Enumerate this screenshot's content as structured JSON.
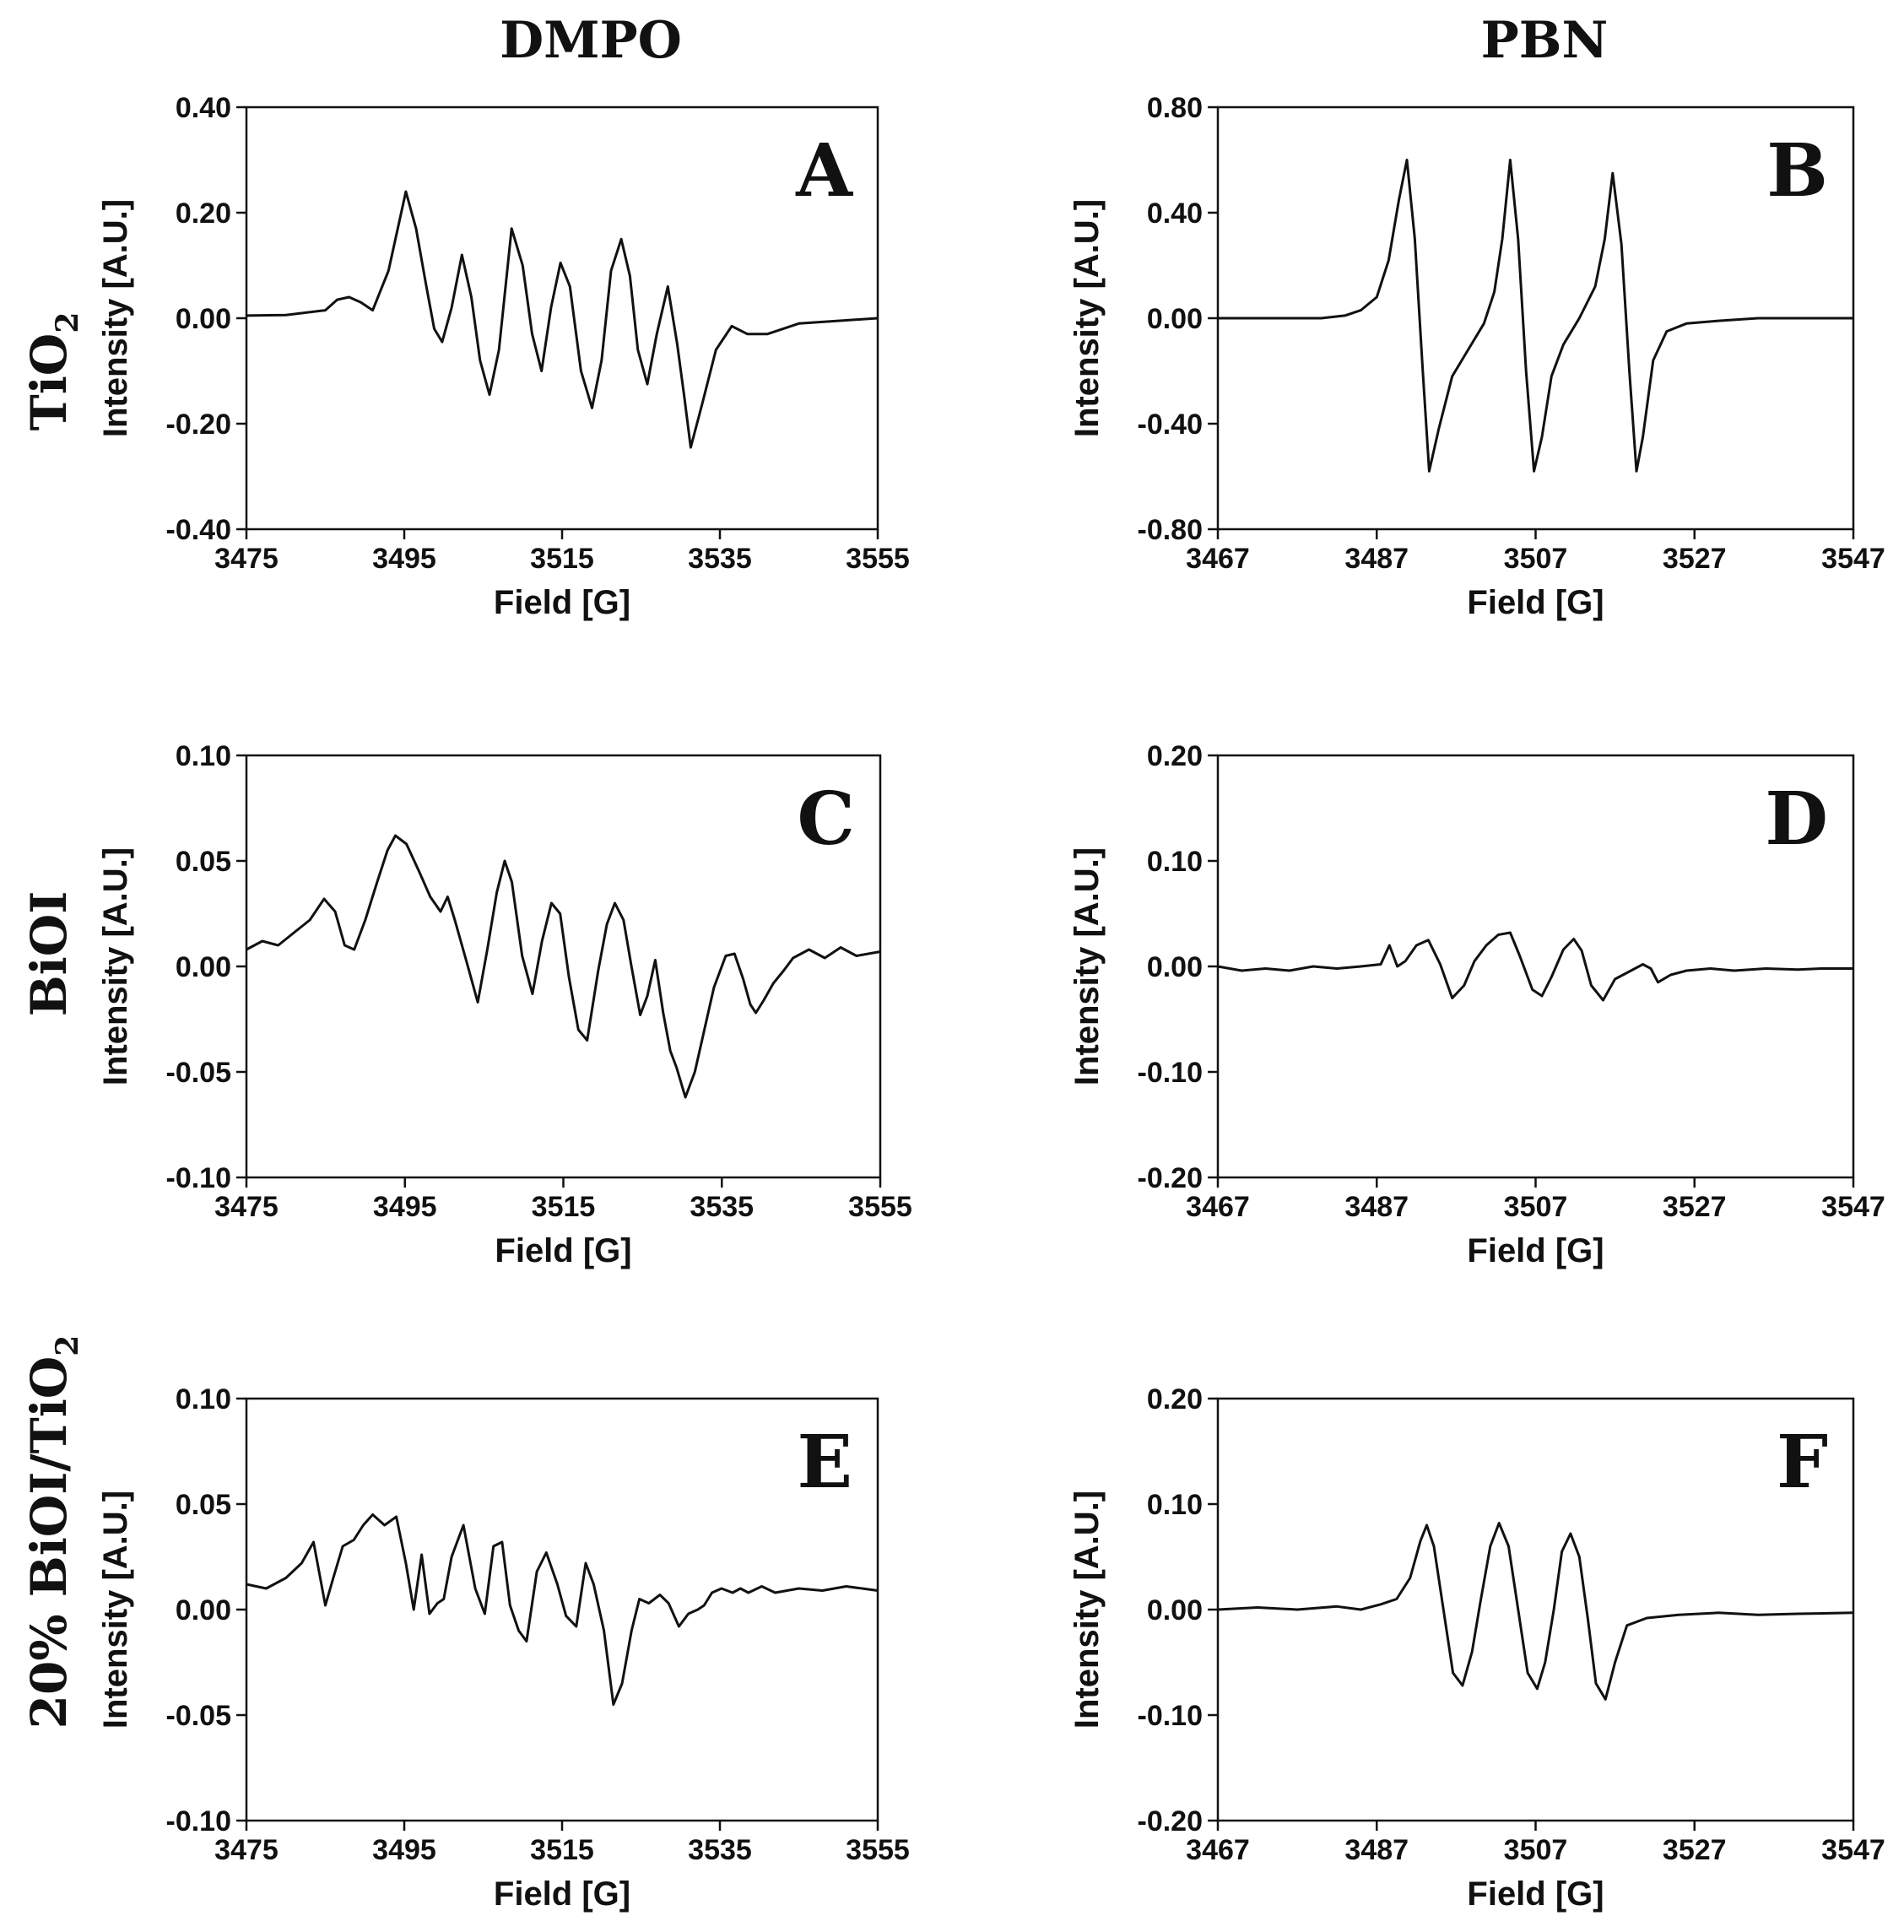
{
  "column_headers": [
    "DMPO",
    "PBN"
  ],
  "row_headers": [
    {
      "main": "TiO",
      "sub": "2"
    },
    {
      "main": "BiOI",
      "sub": ""
    },
    {
      "main": "20% BiOI/TiO",
      "sub": "2"
    }
  ],
  "chart_data": [
    {
      "id": "A",
      "type": "line",
      "panel_label": "A",
      "xlabel": "Field [G]",
      "ylabel": "Intensity [A.U.]",
      "xlim": [
        3475,
        3555
      ],
      "ylim": [
        -0.4,
        0.4
      ],
      "xticks": [
        3475,
        3495,
        3515,
        3535,
        3555
      ],
      "yticks": [
        0.4,
        0.2,
        0.0,
        -0.2,
        -0.4
      ],
      "xtick_labels": [
        "3475",
        "3495",
        "3515",
        "3535",
        "3555"
      ],
      "ytick_labels": [
        "0.40",
        "0.20",
        "0.00",
        "-0.20",
        "-0.40"
      ],
      "series": [
        {
          "name": "TiO2 DMPO",
          "x": [
            3475,
            3480,
            3485,
            3486.5,
            3488,
            3489.5,
            3491,
            3493,
            3495.2,
            3496.5,
            3497.8,
            3498.8,
            3499.8,
            3501,
            3502.3,
            3503.5,
            3504.6,
            3505.8,
            3507,
            3508.6,
            3510,
            3511.2,
            3512.4,
            3513.6,
            3514.8,
            3516,
            3517.4,
            3518.8,
            3520,
            3521.2,
            3522.5,
            3523.6,
            3524.6,
            3525.8,
            3527,
            3528.4,
            3529.6,
            3530.5,
            3531.3,
            3532.8,
            3534.5,
            3536.5,
            3538.5,
            3541,
            3545,
            3550,
            3555
          ],
          "y": [
            0.005,
            0.006,
            0.015,
            0.035,
            0.04,
            0.03,
            0.015,
            0.09,
            0.24,
            0.17,
            0.06,
            -0.02,
            -0.045,
            0.02,
            0.12,
            0.04,
            -0.08,
            -0.145,
            -0.06,
            0.17,
            0.1,
            -0.03,
            -0.1,
            0.02,
            0.105,
            0.06,
            -0.1,
            -0.17,
            -0.08,
            0.09,
            0.15,
            0.08,
            -0.06,
            -0.125,
            -0.03,
            0.06,
            -0.05,
            -0.15,
            -0.245,
            -0.16,
            -0.06,
            -0.015,
            -0.03,
            -0.03,
            -0.01,
            -0.005,
            0.0
          ]
        }
      ]
    },
    {
      "id": "B",
      "type": "line",
      "panel_label": "B",
      "xlabel": "Field [G]",
      "ylabel": "Intensity [A.U.]",
      "xlim": [
        3467,
        3547
      ],
      "ylim": [
        -0.8,
        0.8
      ],
      "xticks": [
        3467,
        3487,
        3507,
        3527,
        3547
      ],
      "yticks": [
        0.8,
        0.4,
        0.0,
        -0.4,
        -0.8
      ],
      "xtick_labels": [
        "3467",
        "3487",
        "3507",
        "3527",
        "3547"
      ],
      "ytick_labels": [
        "0.80",
        "0.40",
        "0.00",
        "-0.40",
        "-0.80"
      ],
      "series": [
        {
          "name": "TiO2 PBN",
          "x": [
            3467,
            3475,
            3480,
            3483,
            3485,
            3487,
            3488.5,
            3489.8,
            3490.8,
            3491.8,
            3492.8,
            3493.6,
            3494.8,
            3496.5,
            3498.5,
            3500.5,
            3501.8,
            3502.8,
            3503.8,
            3504.8,
            3505.8,
            3506.8,
            3507.8,
            3509,
            3510.5,
            3512.5,
            3514.5,
            3515.7,
            3516.7,
            3517.8,
            3518.8,
            3519.7,
            3520.5,
            3521.8,
            3523.5,
            3526,
            3530,
            3535,
            3541,
            3547
          ],
          "y": [
            0.0,
            0.0,
            0.0,
            0.01,
            0.03,
            0.08,
            0.22,
            0.45,
            0.6,
            0.3,
            -0.2,
            -0.58,
            -0.42,
            -0.22,
            -0.12,
            -0.02,
            0.1,
            0.3,
            0.6,
            0.3,
            -0.2,
            -0.58,
            -0.45,
            -0.22,
            -0.1,
            0.0,
            0.12,
            0.3,
            0.55,
            0.28,
            -0.2,
            -0.58,
            -0.45,
            -0.16,
            -0.05,
            -0.02,
            -0.01,
            0.0,
            0.0,
            0.0
          ]
        }
      ]
    },
    {
      "id": "C",
      "type": "line",
      "panel_label": "C",
      "xlabel": "Field [G]",
      "ylabel": "Intensity [A.U.]",
      "xlim": [
        3475,
        3555
      ],
      "ylim": [
        -0.1,
        0.1
      ],
      "xticks": [
        3475,
        3495,
        3515,
        3535,
        3555
      ],
      "yticks": [
        0.1,
        0.05,
        0.0,
        -0.05,
        -0.1
      ],
      "xtick_labels": [
        "3475",
        "3495",
        "3515",
        "3535",
        "3555"
      ],
      "ytick_labels": [
        "0.10",
        "0.05",
        "0.00",
        "-0.05",
        "-0.10"
      ],
      "series": [
        {
          "name": "BiOI DMPO",
          "x": [
            3475,
            3477,
            3479,
            3481,
            3483,
            3484.8,
            3486.2,
            3487.4,
            3488.6,
            3490,
            3491.5,
            3492.8,
            3493.8,
            3495.2,
            3496.8,
            3498.2,
            3499.5,
            3500.4,
            3501.3,
            3502.8,
            3504.2,
            3505.4,
            3506.6,
            3507.6,
            3508.5,
            3509.8,
            3511.1,
            3512.3,
            3513.5,
            3514.6,
            3515.7,
            3516.9,
            3518,
            3519.4,
            3520.5,
            3521.5,
            3522.6,
            3523.6,
            3524.7,
            3525.6,
            3526.6,
            3527.6,
            3528.5,
            3529.3,
            3530.4,
            3531.6,
            3532.8,
            3534,
            3535.5,
            3536.6,
            3537.7,
            3538.6,
            3539.3,
            3540.3,
            3541.5,
            3542.8,
            3544,
            3546,
            3548,
            3550,
            3552,
            3555
          ],
          "y": [
            0.008,
            0.012,
            0.01,
            0.016,
            0.022,
            0.032,
            0.026,
            0.01,
            0.008,
            0.022,
            0.04,
            0.055,
            0.062,
            0.058,
            0.045,
            0.033,
            0.026,
            0.033,
            0.022,
            0.002,
            -0.017,
            0.008,
            0.035,
            0.05,
            0.04,
            0.005,
            -0.013,
            0.012,
            0.03,
            0.025,
            -0.005,
            -0.03,
            -0.035,
            -0.002,
            0.02,
            0.03,
            0.022,
            0.0,
            -0.023,
            -0.014,
            0.003,
            -0.022,
            -0.04,
            -0.048,
            -0.062,
            -0.05,
            -0.03,
            -0.01,
            0.005,
            0.006,
            -0.006,
            -0.018,
            -0.022,
            -0.016,
            -0.008,
            -0.002,
            0.004,
            0.008,
            0.004,
            0.009,
            0.005,
            0.007
          ]
        }
      ]
    },
    {
      "id": "D",
      "type": "line",
      "panel_label": "D",
      "xlabel": "Field [G]",
      "ylabel": "Intensity [A.U.]",
      "xlim": [
        3467,
        3547
      ],
      "ylim": [
        -0.2,
        0.2
      ],
      "xticks": [
        3467,
        3487,
        3507,
        3527,
        3547
      ],
      "yticks": [
        0.2,
        0.1,
        0.0,
        -0.1,
        -0.2
      ],
      "xtick_labels": [
        "3467",
        "3487",
        "3507",
        "3527",
        "3547"
      ],
      "ytick_labels": [
        "0.20",
        "0.10",
        "0.00",
        "-0.10",
        "-0.20"
      ],
      "series": [
        {
          "name": "BiOI PBN",
          "x": [
            3467,
            3470,
            3473,
            3476,
            3479,
            3482,
            3485,
            3487.5,
            3488.6,
            3489.6,
            3490.6,
            3492,
            3493.5,
            3495,
            3496.5,
            3498,
            3499.3,
            3500.8,
            3502.3,
            3503.8,
            3505,
            3506.6,
            3507.8,
            3509,
            3510.5,
            3511.8,
            3512.8,
            3514,
            3515.5,
            3517,
            3519,
            3520.5,
            3521.5,
            3522.4,
            3524,
            3526,
            3529,
            3532,
            3536,
            3540,
            3543,
            3547
          ],
          "y": [
            0.0,
            -0.004,
            -0.002,
            -0.004,
            0.0,
            -0.002,
            0.0,
            0.002,
            0.02,
            0.0,
            0.005,
            0.02,
            0.025,
            0.002,
            -0.03,
            -0.018,
            0.005,
            0.02,
            0.03,
            0.032,
            0.01,
            -0.022,
            -0.028,
            -0.01,
            0.016,
            0.026,
            0.015,
            -0.018,
            -0.032,
            -0.012,
            -0.004,
            0.002,
            -0.002,
            -0.015,
            -0.008,
            -0.004,
            -0.002,
            -0.004,
            -0.002,
            -0.003,
            -0.002,
            -0.002
          ]
        }
      ]
    },
    {
      "id": "E",
      "type": "line",
      "panel_label": "E",
      "xlabel": "Field [G]",
      "ylabel": "Intensity [A.U.]",
      "xlim": [
        3475,
        3555
      ],
      "ylim": [
        -0.1,
        0.1
      ],
      "xticks": [
        3475,
        3495,
        3515,
        3535,
        3555
      ],
      "yticks": [
        0.1,
        0.05,
        0.0,
        -0.05,
        -0.1
      ],
      "xtick_labels": [
        "3475",
        "3495",
        "3515",
        "3535",
        "3555"
      ],
      "ytick_labels": [
        "0.10",
        "0.05",
        "0.00",
        "-0.05",
        "-0.10"
      ],
      "series": [
        {
          "name": "20% BiOI/TiO2 DMPO",
          "x": [
            3475,
            3477.5,
            3480,
            3482,
            3483.5,
            3485,
            3486,
            3487.2,
            3488.6,
            3489.8,
            3491,
            3492.5,
            3494,
            3495.2,
            3496.2,
            3497.2,
            3498.2,
            3499.2,
            3500,
            3501,
            3502.5,
            3504,
            3505.2,
            3506.3,
            3507.4,
            3508.4,
            3509.5,
            3510.5,
            3511.8,
            3513,
            3514.4,
            3515.5,
            3516.8,
            3518,
            3519,
            3520.3,
            3521.5,
            3522.6,
            3523.8,
            3524.8,
            3526,
            3527.4,
            3528.5,
            3529.8,
            3531,
            3532.2,
            3533,
            3534,
            3535.2,
            3536.6,
            3537.6,
            3538.6,
            3540.3,
            3542,
            3545,
            3548,
            3551,
            3555
          ],
          "y": [
            0.012,
            0.01,
            0.015,
            0.022,
            0.032,
            0.002,
            0.015,
            0.03,
            0.033,
            0.04,
            0.045,
            0.04,
            0.044,
            0.022,
            0.0,
            0.026,
            -0.002,
            0.003,
            0.005,
            0.025,
            0.04,
            0.01,
            -0.002,
            0.03,
            0.032,
            0.002,
            -0.01,
            -0.015,
            0.018,
            0.027,
            0.012,
            -0.003,
            -0.008,
            0.022,
            0.012,
            -0.01,
            -0.045,
            -0.035,
            -0.01,
            0.005,
            0.003,
            0.007,
            0.003,
            -0.008,
            -0.002,
            0.0,
            0.002,
            0.008,
            0.01,
            0.008,
            0.01,
            0.008,
            0.011,
            0.008,
            0.01,
            0.009,
            0.011,
            0.009
          ]
        }
      ]
    },
    {
      "id": "F",
      "type": "line",
      "panel_label": "F",
      "xlabel": "Field [G]",
      "ylabel": "Intensity [A.U.]",
      "xlim": [
        3467,
        3547
      ],
      "ylim": [
        -0.2,
        0.2
      ],
      "xticks": [
        3467,
        3487,
        3507,
        3527,
        3547
      ],
      "yticks": [
        0.2,
        0.1,
        0.0,
        -0.1,
        -0.2
      ],
      "xtick_labels": [
        "3467",
        "3487",
        "3507",
        "3527",
        "3547"
      ],
      "ytick_labels": [
        "0.20",
        "0.10",
        "0.00",
        "-0.10",
        "-0.20"
      ],
      "series": [
        {
          "name": "20% BiOI/TiO2 PBN",
          "x": [
            3467,
            3472,
            3477,
            3482,
            3485,
            3487.5,
            3489.5,
            3491.2,
            3492.5,
            3493.3,
            3494.2,
            3495.4,
            3496.6,
            3497.8,
            3499,
            3500,
            3501.3,
            3502.4,
            3503.6,
            3504.8,
            3506,
            3507.2,
            3508.2,
            3509.3,
            3510.3,
            3511.4,
            3512.5,
            3513.6,
            3514.6,
            3515.8,
            3517,
            3518.5,
            3521,
            3525,
            3530,
            3535,
            3540,
            3547
          ],
          "y": [
            0.0,
            0.002,
            0.0,
            0.003,
            0.0,
            0.005,
            0.01,
            0.03,
            0.065,
            0.08,
            0.06,
            0.0,
            -0.06,
            -0.072,
            -0.04,
            0.005,
            0.06,
            0.082,
            0.06,
            0.0,
            -0.06,
            -0.075,
            -0.05,
            0.0,
            0.055,
            0.072,
            0.05,
            -0.01,
            -0.07,
            -0.085,
            -0.05,
            -0.015,
            -0.008,
            -0.005,
            -0.003,
            -0.005,
            -0.004,
            -0.003
          ]
        }
      ]
    }
  ]
}
